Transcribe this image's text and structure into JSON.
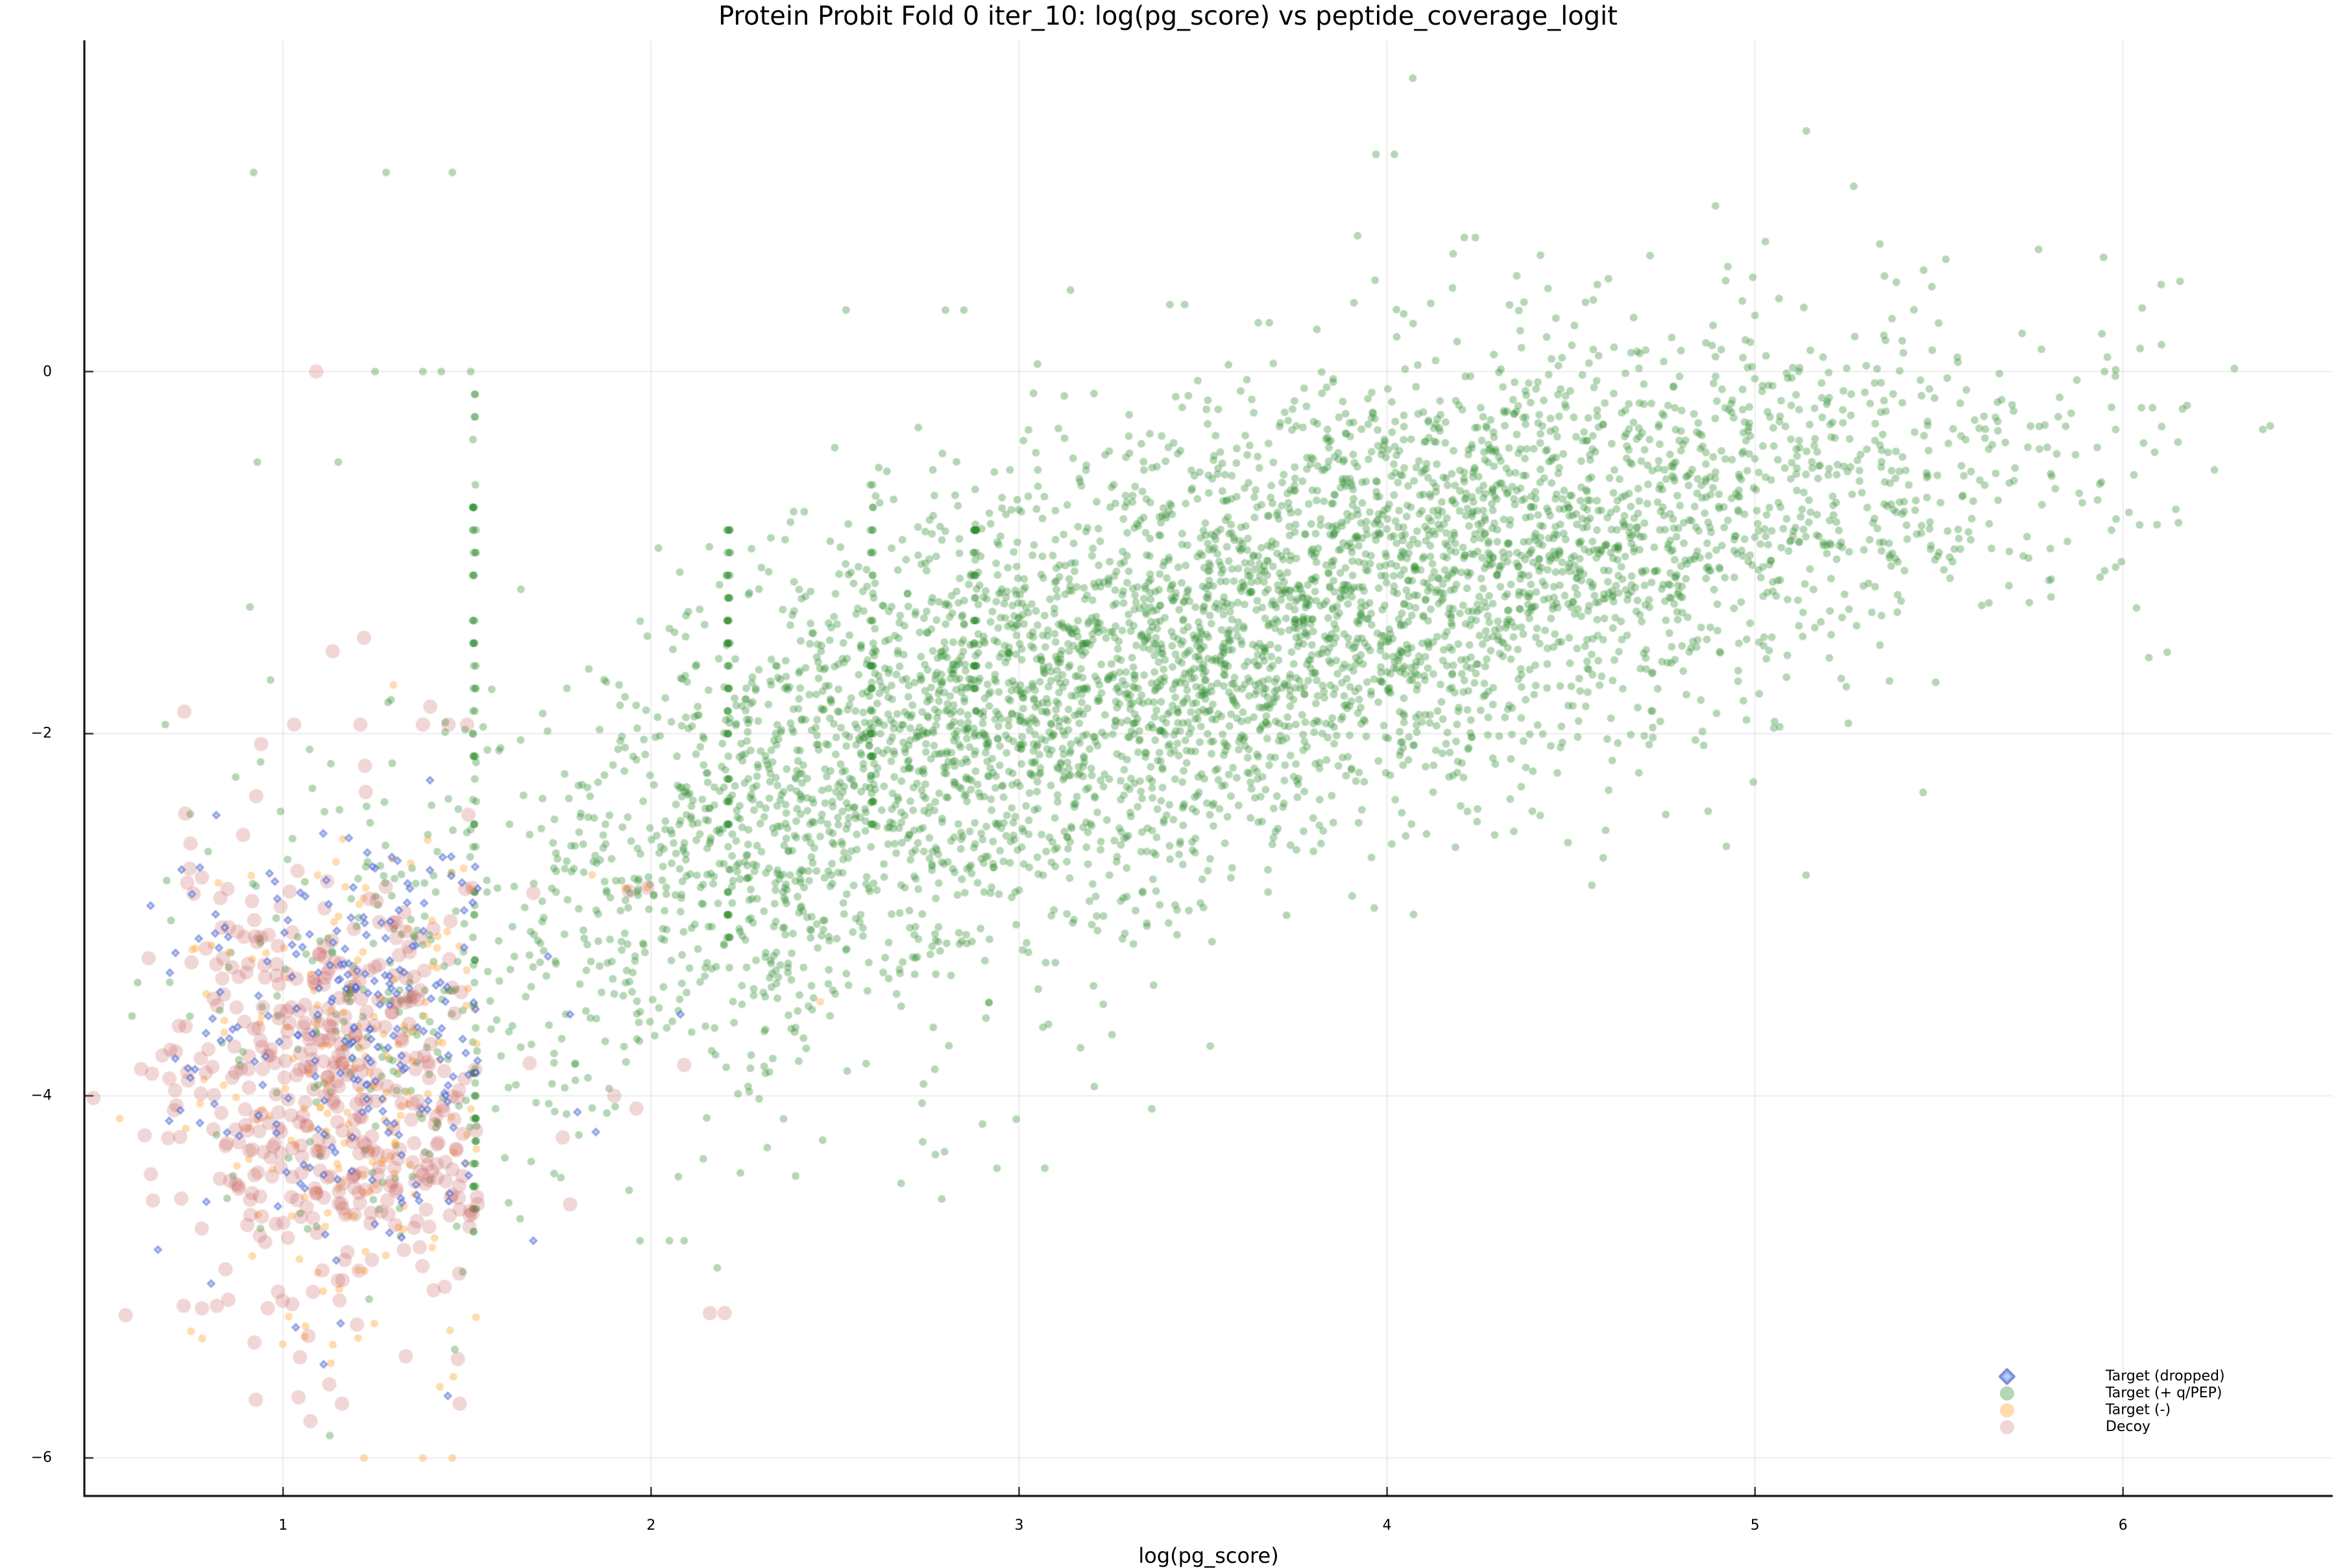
{
  "chart_data": {
    "type": "scatter",
    "title": "Protein Probit Fold 0 iter_10: log(pg_score) vs peptide_coverage_logit",
    "xlabel": "log(pg_score)",
    "ylabel": "",
    "xlim": [
      0.46,
      6.57
    ],
    "ylim": [
      -6.21,
      1.83
    ],
    "xticks": [
      1,
      2,
      3,
      4,
      5,
      6
    ],
    "xtick_labels": [
      "1",
      "2",
      "3",
      "4",
      "5",
      "6"
    ],
    "yticks": [
      0,
      -2,
      -4,
      -6
    ],
    "ytick_labels": [
      "0",
      "−2",
      "−4",
      "−6"
    ],
    "grid": true,
    "legend_position": "bottom-right",
    "legend": [
      {
        "label": "Target (dropped)",
        "marker": "diamond",
        "color": "#3a4fc0"
      },
      {
        "label": "Target (+ q/PEP)",
        "marker": "circle",
        "color": "#2e8b2e"
      },
      {
        "label": "Target (-)",
        "marker": "circle",
        "color": "#ffb04d"
      },
      {
        "label": "Decoy",
        "marker": "circle",
        "color": "#c85a5a"
      }
    ],
    "series": [
      {
        "name": "Target (+ q/PEP)",
        "approx_count": 5200,
        "description": "Main cloud, positively correlated: centered near x≈3.9, y≈−1.3; spans x 0.6–6.4, y −5.2 to 1.6. Vertical columns of stacked points at x≈1.52, 2.21, 2.6, 2.9.",
        "clusters": [
          {
            "cx": 3.9,
            "cy": -1.25,
            "sx": 0.75,
            "sy": 0.6,
            "n": 3000,
            "slope": 0.42
          },
          {
            "cx": 2.9,
            "cy": -2.1,
            "sx": 0.45,
            "sy": 0.6,
            "n": 1100,
            "slope": 0.3
          },
          {
            "cx": 2.2,
            "cy": -2.8,
            "sx": 0.3,
            "sy": 0.6,
            "n": 500,
            "slope": 0.2
          },
          {
            "cx": 5.1,
            "cy": -0.7,
            "sx": 0.5,
            "sy": 0.45,
            "n": 400,
            "slope": 0.2
          },
          {
            "cx": 1.3,
            "cy": -3.4,
            "sx": 0.25,
            "sy": 0.7,
            "n": 250,
            "slope": 0.0
          }
        ],
        "columns": [
          {
            "x": 1.52,
            "ymin": -4.8,
            "ymax": 0.0,
            "n": 90
          },
          {
            "x": 2.21,
            "ymin": -3.2,
            "ymax": -0.8,
            "n": 70
          },
          {
            "x": 2.6,
            "ymin": -2.6,
            "ymax": -0.6,
            "n": 50
          },
          {
            "x": 2.88,
            "ymin": -2.0,
            "ymax": -0.8,
            "n": 40
          }
        ],
        "outliers": [
          [
            4.07,
            1.62
          ],
          [
            3.97,
            1.2
          ],
          [
            4.02,
            1.2
          ],
          [
            0.92,
            1.1
          ],
          [
            1.28,
            1.1
          ],
          [
            1.46,
            1.1
          ],
          [
            3.92,
            0.75
          ],
          [
            4.21,
            0.74
          ],
          [
            4.24,
            0.74
          ],
          [
            3.14,
            0.45
          ],
          [
            3.41,
            0.37
          ],
          [
            3.45,
            0.37
          ],
          [
            2.53,
            0.34
          ],
          [
            2.8,
            0.34
          ],
          [
            2.85,
            0.34
          ],
          [
            5.0,
            0.31
          ],
          [
            3.91,
            0.38
          ],
          [
            3.65,
            0.27
          ],
          [
            3.68,
            0.27
          ],
          [
            5.35,
            0.2
          ],
          [
            5.4,
            0.17
          ],
          [
            5.95,
            0.0
          ],
          [
            5.98,
            0.01
          ],
          [
            6.38,
            -0.32
          ],
          [
            6.4,
            -0.3
          ],
          [
            5.98,
            -0.32
          ],
          [
            6.05,
            -0.2
          ],
          [
            6.08,
            -0.2
          ],
          [
            0.93,
            -0.5
          ],
          [
            1.15,
            -0.5
          ],
          [
            0.91,
            -1.3
          ],
          [
            0.68,
            -1.95
          ],
          [
            6.07,
            -1.58
          ],
          [
            6.12,
            -1.55
          ],
          [
            5.95,
            -1.1
          ],
          [
            5.98,
            -1.08
          ],
          [
            2.94,
            -4.4
          ],
          [
            3.07,
            -4.4
          ],
          [
            2.79,
            -4.57
          ],
          [
            1.97,
            -4.8
          ],
          [
            2.05,
            -4.8
          ],
          [
            2.09,
            -4.8
          ],
          [
            2.18,
            -4.95
          ],
          [
            1.25,
            0.0
          ],
          [
            1.38,
            0.0
          ],
          [
            1.43,
            0.0
          ],
          [
            1.51,
            0.0
          ]
        ]
      },
      {
        "name": "Target (dropped)",
        "approx_count": 260,
        "description": "Mostly within x 0.65–1.53, y −5 to −2.3; a few at x≈1.7–1.9",
        "clusters": [
          {
            "cx": 1.25,
            "cy": -3.6,
            "sx": 0.2,
            "sy": 0.6,
            "n": 220,
            "slope": 0.0
          },
          {
            "cx": 0.85,
            "cy": -3.6,
            "sx": 0.12,
            "sy": 0.6,
            "n": 30,
            "slope": 0.0
          }
        ],
        "outliers": [
          [
            1.68,
            -4.8
          ],
          [
            1.72,
            -3.23
          ],
          [
            1.78,
            -3.55
          ],
          [
            1.8,
            -4.09
          ],
          [
            1.85,
            -4.2
          ],
          [
            2.08,
            -3.55
          ],
          [
            0.66,
            -4.85
          ],
          [
            0.64,
            -2.95
          ]
        ]
      },
      {
        "name": "Target (-)",
        "approx_count": 220,
        "description": "Within x 0.65–1.53, y −6 to −1.7",
        "clusters": [
          {
            "cx": 1.2,
            "cy": -4.0,
            "sx": 0.22,
            "sy": 0.7,
            "n": 200,
            "slope": 0.0
          }
        ],
        "outliers": [
          [
            1.22,
            -6.0
          ],
          [
            1.38,
            -6.0
          ],
          [
            1.46,
            -6.0
          ],
          [
            0.75,
            -5.3
          ],
          [
            0.78,
            -5.34
          ],
          [
            1.3,
            -1.73
          ],
          [
            1.93,
            -2.85
          ],
          [
            1.99,
            -2.85
          ],
          [
            2.46,
            -3.48
          ],
          [
            1.84,
            -2.78
          ]
        ]
      },
      {
        "name": "Decoy",
        "approx_count": 520,
        "description": "Large translucent circles, x 0.6–1.53, y −5.7 to −1.5, densest near x≈1.2, y≈−4",
        "clusters": [
          {
            "cx": 1.22,
            "cy": -4.0,
            "sx": 0.2,
            "sy": 0.65,
            "n": 380,
            "slope": 0.0
          },
          {
            "cx": 0.85,
            "cy": -3.9,
            "sx": 0.14,
            "sy": 0.7,
            "n": 90,
            "slope": 0.0
          }
        ],
        "outliers": [
          [
            1.09,
            0.0
          ],
          [
            1.22,
            -1.47
          ],
          [
            1.03,
            -1.95
          ],
          [
            1.21,
            -1.95
          ],
          [
            1.38,
            -1.95
          ],
          [
            1.4,
            -1.85
          ],
          [
            1.45,
            -1.95
          ],
          [
            1.5,
            -1.95
          ],
          [
            1.68,
            -2.88
          ],
          [
            1.67,
            -3.82
          ],
          [
            1.76,
            -4.23
          ],
          [
            1.78,
            -4.6
          ],
          [
            1.9,
            -4.0
          ],
          [
            1.96,
            -4.07
          ],
          [
            2.16,
            -5.2
          ],
          [
            2.2,
            -5.2
          ],
          [
            1.94,
            -2.87
          ],
          [
            1.99,
            -2.85
          ],
          [
            2.09,
            -3.83
          ],
          [
            1.16,
            -5.7
          ],
          [
            1.48,
            -5.7
          ],
          [
            0.73,
            -5.16
          ],
          [
            0.82,
            -5.16
          ]
        ]
      }
    ]
  }
}
